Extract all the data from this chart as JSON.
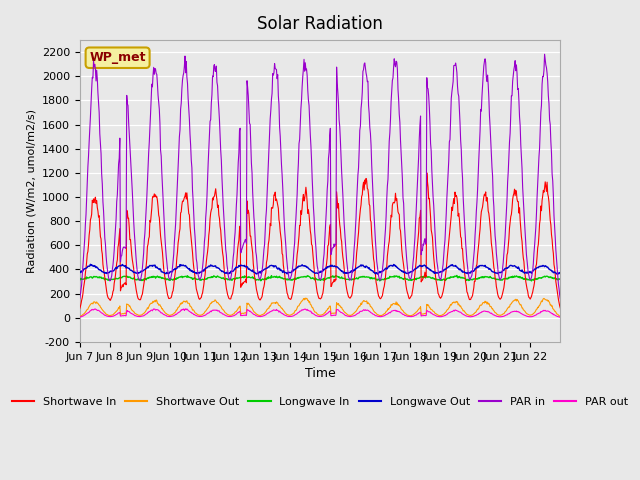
{
  "title": "Solar Radiation",
  "ylabel": "Radiation (W/m2, umol/m2/s)",
  "xlabel": "Time",
  "ylim": [
    -200,
    2300
  ],
  "yticks": [
    -200,
    0,
    200,
    400,
    600,
    800,
    1000,
    1200,
    1400,
    1600,
    1800,
    2000,
    2200
  ],
  "background_color": "#e8e8e8",
  "plot_bg_color": "#e8e8e8",
  "annotation_label": "WP_met",
  "x_tick_labels": [
    "Jun 7",
    "Jun 8",
    "Jun 9",
    "Jun 10",
    "Jun 11",
    "Jun 12",
    "Jun 13",
    "Jun 14",
    "Jun 15",
    "Jun 16",
    "Jun 17",
    "Jun 18",
    "Jun 19",
    "Jun 20",
    "Jun 21",
    "Jun 22"
  ],
  "legend_entries": [
    {
      "label": "Shortwave In",
      "color": "#ff0000"
    },
    {
      "label": "Shortwave Out",
      "color": "#ff9900"
    },
    {
      "label": "Longwave In",
      "color": "#00cc00"
    },
    {
      "label": "Longwave Out",
      "color": "#0000cc"
    },
    {
      "label": "PAR in",
      "color": "#9900cc"
    },
    {
      "label": "PAR out",
      "color": "#ff00cc"
    }
  ],
  "num_days": 16,
  "shortwave_in_peaks": [
    1000,
    950,
    1020,
    1030,
    1040,
    1000,
    1000,
    1020,
    1020,
    1150,
    980,
    1170,
    1000,
    1000,
    1050,
    1100
  ],
  "shortwave_out_peaks": [
    130,
    120,
    140,
    140,
    140,
    130,
    130,
    160,
    130,
    140,
    120,
    115,
    130,
    130,
    145,
    155
  ],
  "longwave_in_base": 330,
  "longwave_out_base": 390,
  "par_in_peaks": [
    2100,
    1950,
    2100,
    2100,
    2080,
    2100,
    2100,
    2100,
    2040,
    2080,
    2100,
    2100,
    2100,
    2100,
    2100,
    2100
  ],
  "par_out_peaks": [
    70,
    60,
    70,
    70,
    65,
    70,
    65,
    70,
    70,
    65,
    60,
    60,
    60,
    55,
    55,
    60
  ]
}
